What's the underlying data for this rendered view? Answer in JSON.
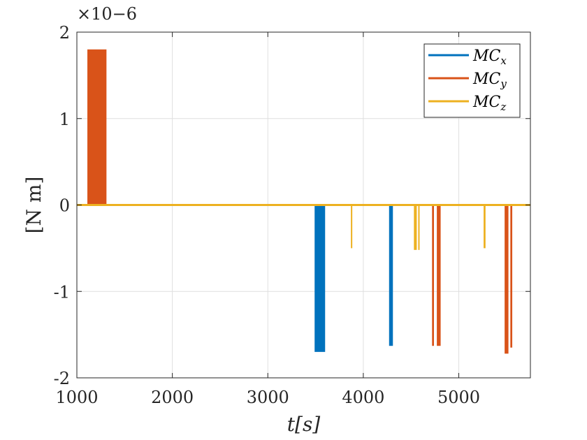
{
  "chart_data": {
    "type": "line",
    "xlabel": "t[s]",
    "ylabel": "[N m]",
    "y_exponent": "×10−6",
    "xlim": [
      1000,
      5750
    ],
    "ylim": [
      -2,
      2
    ],
    "x_ticks": [
      "1000",
      "2000",
      "3000",
      "4000",
      "5000"
    ],
    "y_ticks": [
      "-2",
      "-1",
      "0",
      "1",
      "2"
    ],
    "x_tick_values": [
      1000,
      2000,
      3000,
      4000,
      5000
    ],
    "y_tick_values": [
      -2,
      -1,
      0,
      1,
      2
    ],
    "grid": true,
    "legend_position": "top-right",
    "series": [
      {
        "name": "MC_x",
        "label_main": "MC",
        "label_sub": "x",
        "color": "#0072BD",
        "pulses": [
          {
            "x0": 3490,
            "x1": 3600,
            "y": -1.7
          },
          {
            "x0": 4270,
            "x1": 4310,
            "y": -1.63
          }
        ]
      },
      {
        "name": "MC_y",
        "label_main": "MC",
        "label_sub": "y",
        "color": "#D95319",
        "pulses": [
          {
            "x0": 1110,
            "x1": 1310,
            "y": 1.8
          },
          {
            "x0": 4720,
            "x1": 4740,
            "y": -1.63
          },
          {
            "x0": 4770,
            "x1": 4810,
            "y": -1.63
          },
          {
            "x0": 5480,
            "x1": 5520,
            "y": -1.72
          },
          {
            "x0": 5540,
            "x1": 5560,
            "y": -1.65
          }
        ]
      },
      {
        "name": "MC_z",
        "label_main": "MC",
        "label_sub": "z",
        "color": "#EDB120",
        "pulses": [
          {
            "x0": 3870,
            "x1": 3875,
            "y": -0.5
          },
          {
            "x0": 4530,
            "x1": 4560,
            "y": -0.52
          },
          {
            "x0": 4575,
            "x1": 4585,
            "y": -0.52
          },
          {
            "x0": 5260,
            "x1": 5280,
            "y": -0.5
          }
        ]
      }
    ]
  }
}
